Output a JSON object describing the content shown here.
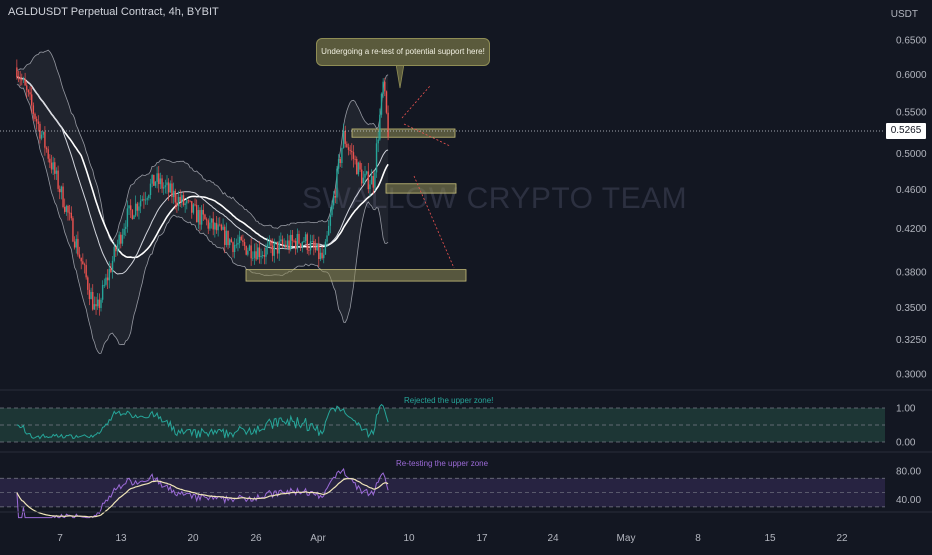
{
  "header": {
    "title": "AGLDUSDT Perpetual Contract, 4h, BYBIT",
    "unit": "USDT"
  },
  "watermark": "SWALLOW CRYPTO TEAM",
  "annotations": {
    "callout": "Undergoing a re-test of potential support here!",
    "osc1_note": "Rejected the upper zone!",
    "osc2_note": "Re-testing the upper zone"
  },
  "colors": {
    "background": "#131722",
    "candle_up": "#26a69a",
    "candle_down": "#ef5350",
    "ma_line": "#ffffff",
    "zone": "#8f8d55",
    "osc1_line": "#26a69a",
    "osc1_band": "#1f3a37",
    "osc2_line": "#9c6bd8",
    "osc2_signal": "#f0e6b8",
    "osc2_band": "#2a2545"
  },
  "chart_data": [
    {
      "type": "candlestick",
      "title": "AGLDUSDT Perpetual Contract, 4h, BYBIT",
      "ylabel": "USDT",
      "ylim": [
        0.28,
        0.68
      ],
      "y_scale": "log",
      "yticks": [
        "0.6500",
        "0.6000",
        "0.5500",
        "0.5000",
        "0.4600",
        "0.4200",
        "0.3800",
        "0.3500",
        "0.3250",
        "0.3000"
      ],
      "current_price": "0.5265",
      "x_ticks": [
        "7",
        "13",
        "20",
        "26",
        "Apr",
        "10",
        "17",
        "24",
        "May",
        "8",
        "15",
        "22"
      ],
      "ohlc_anchors": [
        {
          "t": "Mar 3",
          "price": 0.61
        },
        {
          "t": "Mar 5",
          "price": 0.54
        },
        {
          "t": "Mar 8",
          "price": 0.44
        },
        {
          "t": "Mar 11",
          "price": 0.345
        },
        {
          "t": "Mar 14",
          "price": 0.43
        },
        {
          "t": "Mar 17",
          "price": 0.47
        },
        {
          "t": "Mar 21",
          "price": 0.435
        },
        {
          "t": "Mar 25",
          "price": 0.405
        },
        {
          "t": "Mar 28",
          "price": 0.398
        },
        {
          "t": "Apr 1",
          "price": 0.41
        },
        {
          "t": "Apr 3",
          "price": 0.39
        },
        {
          "t": "Apr 5",
          "price": 0.52
        },
        {
          "t": "Apr 7",
          "price": 0.47
        },
        {
          "t": "Apr 8",
          "price": 0.47
        },
        {
          "t": "Apr 9",
          "price": 0.585
        },
        {
          "t": "Apr 9",
          "price": 0.5265
        }
      ],
      "zones": [
        {
          "low": 0.519,
          "high": 0.529
        },
        {
          "low": 0.456,
          "high": 0.466
        },
        {
          "low": 0.372,
          "high": 0.382
        }
      ]
    },
    {
      "type": "line",
      "name": "oscillator-1",
      "yticks": [
        "1.00",
        "0.00"
      ],
      "band": [
        0.0,
        1.0
      ],
      "note": "Rejected the upper zone!"
    },
    {
      "type": "line",
      "name": "oscillator-2",
      "yticks": [
        "80.00",
        "40.00"
      ],
      "band": [
        30,
        70
      ],
      "note": "Re-testing the upper zone"
    }
  ]
}
